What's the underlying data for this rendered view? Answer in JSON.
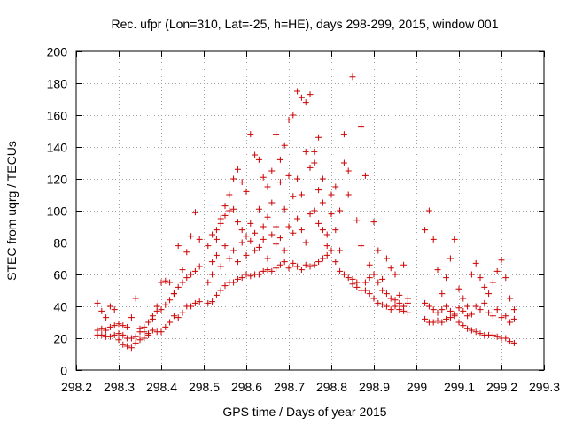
{
  "chart_data": {
    "type": "scatter",
    "title": "Rec. ufpr (Lon=310, Lat=-25, h=HE), days 298-299, 2015, window 001",
    "xlabel": "GPS time / Days of year 2015",
    "ylabel": "STEC from uqrg / TECUs",
    "xlim": [
      298.2,
      299.3
    ],
    "ylim": [
      0,
      200
    ],
    "xticks": [
      298.2,
      298.3,
      298.4,
      298.5,
      298.6,
      298.7,
      298.8,
      298.9,
      299.0,
      299.1,
      299.2,
      299.3
    ],
    "xtick_labels": [
      "298.2",
      "298.3",
      "298.4",
      "298.5",
      "298.6",
      "298.7",
      "298.8",
      "298.9",
      "299",
      "299.1",
      "299.2",
      "299.3"
    ],
    "yticks": [
      0,
      20,
      40,
      60,
      80,
      100,
      120,
      140,
      160,
      180,
      200
    ],
    "ytick_labels": [
      "0",
      "20",
      "40",
      "60",
      "80",
      "100",
      "120",
      "140",
      "160",
      "180",
      "200"
    ],
    "grid": true,
    "marker": "+",
    "color": "#cc0000",
    "series": [
      {
        "name": "STEC",
        "points": [
          [
            298.25,
            42
          ],
          [
            298.26,
            37
          ],
          [
            298.27,
            33
          ],
          [
            298.28,
            40
          ],
          [
            298.29,
            38
          ],
          [
            298.3,
            29
          ],
          [
            298.31,
            28
          ],
          [
            298.32,
            27
          ],
          [
            298.33,
            33
          ],
          [
            298.34,
            45
          ],
          [
            298.35,
            26
          ],
          [
            298.36,
            24
          ],
          [
            298.37,
            23
          ],
          [
            298.38,
            32
          ],
          [
            298.39,
            40
          ],
          [
            298.4,
            55
          ],
          [
            298.41,
            56
          ],
          [
            298.42,
            55
          ],
          [
            298.43,
            48
          ],
          [
            298.44,
            78
          ],
          [
            298.45,
            63
          ],
          [
            298.46,
            74
          ],
          [
            298.47,
            84
          ],
          [
            298.48,
            99
          ],
          [
            298.49,
            82
          ],
          [
            298.25,
            22
          ],
          [
            298.26,
            22
          ],
          [
            298.27,
            21
          ],
          [
            298.28,
            21
          ],
          [
            298.29,
            22
          ],
          [
            298.3,
            19
          ],
          [
            298.31,
            16
          ],
          [
            298.32,
            15
          ],
          [
            298.33,
            14
          ],
          [
            298.34,
            17
          ],
          [
            298.35,
            19
          ],
          [
            298.36,
            20
          ],
          [
            298.37,
            22
          ],
          [
            298.38,
            25
          ],
          [
            298.39,
            24
          ],
          [
            298.4,
            24
          ],
          [
            298.41,
            27
          ],
          [
            298.42,
            30
          ],
          [
            298.43,
            34
          ],
          [
            298.44,
            33
          ],
          [
            298.45,
            36
          ],
          [
            298.46,
            40
          ],
          [
            298.47,
            40
          ],
          [
            298.48,
            42
          ],
          [
            298.49,
            43
          ],
          [
            298.25,
            25
          ],
          [
            298.26,
            26
          ],
          [
            298.27,
            25
          ],
          [
            298.28,
            27
          ],
          [
            298.29,
            28
          ],
          [
            298.3,
            23
          ],
          [
            298.31,
            22
          ],
          [
            298.32,
            20
          ],
          [
            298.33,
            20
          ],
          [
            298.34,
            21
          ],
          [
            298.35,
            24
          ],
          [
            298.36,
            27
          ],
          [
            298.37,
            30
          ],
          [
            298.38,
            34
          ],
          [
            298.39,
            37
          ],
          [
            298.4,
            38
          ],
          [
            298.41,
            41
          ],
          [
            298.42,
            44
          ],
          [
            298.43,
            48
          ],
          [
            298.44,
            52
          ],
          [
            298.45,
            55
          ],
          [
            298.46,
            58
          ],
          [
            298.47,
            60
          ],
          [
            298.48,
            62
          ],
          [
            298.49,
            65
          ],
          [
            298.51,
            42
          ],
          [
            298.52,
            43
          ],
          [
            298.53,
            47
          ],
          [
            298.54,
            50
          ],
          [
            298.55,
            53
          ],
          [
            298.56,
            55
          ],
          [
            298.57,
            55
          ],
          [
            298.58,
            57
          ],
          [
            298.59,
            58
          ],
          [
            298.6,
            60
          ],
          [
            298.61,
            59
          ],
          [
            298.62,
            60
          ],
          [
            298.63,
            60
          ],
          [
            298.64,
            62
          ],
          [
            298.65,
            63
          ],
          [
            298.66,
            62
          ],
          [
            298.67,
            64
          ],
          [
            298.68,
            66
          ],
          [
            298.69,
            68
          ],
          [
            298.7,
            64
          ],
          [
            298.71,
            67
          ],
          [
            298.72,
            65
          ],
          [
            298.73,
            63
          ],
          [
            298.74,
            66
          ],
          [
            298.75,
            65
          ],
          [
            298.76,
            66
          ],
          [
            298.77,
            68
          ],
          [
            298.78,
            70
          ],
          [
            298.51,
            55
          ],
          [
            298.52,
            68
          ],
          [
            298.53,
            82
          ],
          [
            298.54,
            95
          ],
          [
            298.55,
            103
          ],
          [
            298.56,
            110
          ],
          [
            298.57,
            120
          ],
          [
            298.58,
            126
          ],
          [
            298.59,
            118
          ],
          [
            298.6,
            112
          ],
          [
            298.61,
            148
          ],
          [
            298.62,
            135
          ],
          [
            298.63,
            132
          ],
          [
            298.64,
            121
          ],
          [
            298.65,
            115
          ],
          [
            298.66,
            125
          ],
          [
            298.67,
            148
          ],
          [
            298.68,
            132
          ],
          [
            298.69,
            141
          ],
          [
            298.7,
            157
          ],
          [
            298.71,
            160
          ],
          [
            298.72,
            175
          ],
          [
            298.73,
            171
          ],
          [
            298.74,
            168
          ],
          [
            298.75,
            173
          ],
          [
            298.76,
            137
          ],
          [
            298.77,
            146
          ],
          [
            298.78,
            120
          ],
          [
            298.51,
            78
          ],
          [
            298.52,
            85
          ],
          [
            298.53,
            88
          ],
          [
            298.54,
            92
          ],
          [
            298.55,
            97
          ],
          [
            298.56,
            100
          ],
          [
            298.57,
            101
          ],
          [
            298.58,
            93
          ],
          [
            298.59,
            88
          ],
          [
            298.6,
            84
          ],
          [
            298.61,
            92
          ],
          [
            298.62,
            86
          ],
          [
            298.63,
            101
          ],
          [
            298.64,
            90
          ],
          [
            298.65,
            96
          ],
          [
            298.66,
            105
          ],
          [
            298.67,
            90
          ],
          [
            298.68,
            118
          ],
          [
            298.69,
            101
          ],
          [
            298.7,
            122
          ],
          [
            298.71,
            109
          ],
          [
            298.72,
            120
          ],
          [
            298.73,
            110
          ],
          [
            298.74,
            137
          ],
          [
            298.75,
            127
          ],
          [
            298.76,
            130
          ],
          [
            298.77,
            113
          ],
          [
            298.78,
            105
          ],
          [
            298.52,
            60
          ],
          [
            298.53,
            72
          ],
          [
            298.54,
            65
          ],
          [
            298.55,
            78
          ],
          [
            298.56,
            70
          ],
          [
            298.57,
            75
          ],
          [
            298.58,
            68
          ],
          [
            298.59,
            80
          ],
          [
            298.6,
            72
          ],
          [
            298.61,
            81
          ],
          [
            298.62,
            75
          ],
          [
            298.63,
            77
          ],
          [
            298.64,
            82
          ],
          [
            298.65,
            70
          ],
          [
            298.66,
            85
          ],
          [
            298.67,
            79
          ],
          [
            298.68,
            83
          ],
          [
            298.69,
            75
          ],
          [
            298.7,
            90
          ],
          [
            298.71,
            86
          ],
          [
            298.72,
            95
          ],
          [
            298.73,
            88
          ],
          [
            298.74,
            80
          ],
          [
            298.75,
            98
          ],
          [
            298.76,
            100
          ],
          [
            298.77,
            92
          ],
          [
            298.78,
            88
          ],
          [
            298.79,
            85
          ],
          [
            298.8,
            98
          ],
          [
            298.81,
            88
          ],
          [
            298.82,
            75
          ],
          [
            298.83,
            148
          ],
          [
            298.84,
            125
          ],
          [
            298.85,
            184
          ],
          [
            298.86,
            94
          ],
          [
            298.87,
            153
          ],
          [
            298.88,
            122
          ],
          [
            298.89,
            66
          ],
          [
            298.9,
            93
          ],
          [
            298.91,
            75
          ],
          [
            298.92,
            57
          ],
          [
            298.93,
            70
          ],
          [
            298.94,
            64
          ],
          [
            298.95,
            60
          ],
          [
            298.96,
            42
          ],
          [
            298.97,
            66
          ],
          [
            298.98,
            45
          ],
          [
            298.79,
            78
          ],
          [
            298.8,
            110
          ],
          [
            298.81,
            115
          ],
          [
            298.82,
            100
          ],
          [
            298.83,
            130
          ],
          [
            298.84,
            110
          ],
          [
            298.85,
            57
          ],
          [
            298.86,
            55
          ],
          [
            298.87,
            78
          ],
          [
            298.88,
            50
          ],
          [
            298.89,
            48
          ],
          [
            298.9,
            45
          ],
          [
            298.91,
            42
          ],
          [
            298.92,
            41
          ],
          [
            298.93,
            40
          ],
          [
            298.94,
            38
          ],
          [
            298.95,
            40
          ],
          [
            298.96,
            38
          ],
          [
            298.97,
            37
          ],
          [
            298.98,
            36
          ],
          [
            298.79,
            72
          ],
          [
            298.8,
            75
          ],
          [
            298.81,
            68
          ],
          [
            298.82,
            62
          ],
          [
            298.83,
            60
          ],
          [
            298.84,
            58
          ],
          [
            298.85,
            54
          ],
          [
            298.86,
            52
          ],
          [
            298.87,
            50
          ],
          [
            298.88,
            55
          ],
          [
            298.89,
            58
          ],
          [
            298.9,
            60
          ],
          [
            298.91,
            55
          ],
          [
            298.92,
            50
          ],
          [
            298.93,
            48
          ],
          [
            298.94,
            45
          ],
          [
            298.95,
            44
          ],
          [
            298.96,
            47
          ],
          [
            298.97,
            40
          ],
          [
            298.98,
            42
          ],
          [
            299.02,
            88
          ],
          [
            299.03,
            100
          ],
          [
            299.04,
            82
          ],
          [
            299.05,
            63
          ],
          [
            299.06,
            48
          ],
          [
            299.07,
            58
          ],
          [
            299.08,
            70
          ],
          [
            299.09,
            82
          ],
          [
            299.1,
            51
          ],
          [
            299.11,
            45
          ],
          [
            299.12,
            40
          ],
          [
            299.13,
            60
          ],
          [
            299.14,
            67
          ],
          [
            299.15,
            58
          ],
          [
            299.16,
            52
          ],
          [
            299.17,
            48
          ],
          [
            299.18,
            55
          ],
          [
            299.19,
            62
          ],
          [
            299.2,
            69
          ],
          [
            299.21,
            58
          ],
          [
            299.22,
            45
          ],
          [
            299.23,
            38
          ],
          [
            299.02,
            42
          ],
          [
            299.03,
            40
          ],
          [
            299.04,
            38
          ],
          [
            299.05,
            36
          ],
          [
            299.06,
            38
          ],
          [
            299.07,
            40
          ],
          [
            299.08,
            37
          ],
          [
            299.09,
            35
          ],
          [
            299.1,
            39
          ],
          [
            299.11,
            37
          ],
          [
            299.12,
            34
          ],
          [
            299.13,
            35
          ],
          [
            299.14,
            40
          ],
          [
            299.15,
            38
          ],
          [
            299.16,
            42
          ],
          [
            299.17,
            36
          ],
          [
            299.18,
            34
          ],
          [
            299.19,
            38
          ],
          [
            299.2,
            33
          ],
          [
            299.21,
            34
          ],
          [
            299.22,
            30
          ],
          [
            299.23,
            32
          ],
          [
            299.02,
            32
          ],
          [
            299.03,
            30
          ],
          [
            299.04,
            30
          ],
          [
            299.05,
            31
          ],
          [
            299.06,
            30
          ],
          [
            299.07,
            32
          ],
          [
            299.08,
            33
          ],
          [
            299.09,
            34
          ],
          [
            299.1,
            30
          ],
          [
            299.11,
            28
          ],
          [
            299.12,
            26
          ],
          [
            299.13,
            25
          ],
          [
            299.14,
            24
          ],
          [
            299.15,
            23
          ],
          [
            299.16,
            22
          ],
          [
            299.17,
            22
          ],
          [
            299.18,
            22
          ],
          [
            299.19,
            21
          ],
          [
            299.2,
            20
          ],
          [
            299.21,
            20
          ],
          [
            299.22,
            18
          ],
          [
            299.23,
            17
          ]
        ]
      }
    ]
  }
}
